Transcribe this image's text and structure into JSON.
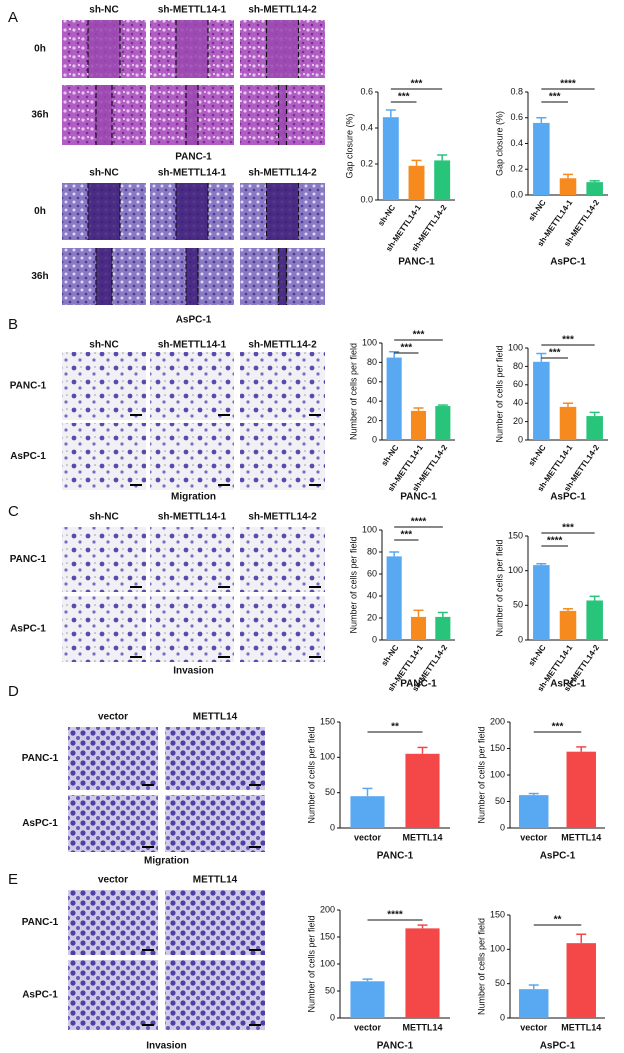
{
  "figure": {
    "panels": [
      "A",
      "B",
      "C",
      "D",
      "E"
    ],
    "image_grids": [
      {
        "columns": [
          "sh-NC",
          "sh-METTL14-1",
          "sh-METTL14-2"
        ],
        "rows": [
          "0h",
          "36h"
        ],
        "caption": "PANC-1"
      },
      {
        "columns": [
          "sh-NC",
          "sh-METTL14-1",
          "sh-METTL14-2"
        ],
        "rows": [
          "0h",
          "36h"
        ],
        "caption": "AsPC-1"
      },
      {
        "columns": [
          "sh-NC",
          "sh-METTL14-1",
          "sh-METTL14-2"
        ],
        "rows": [
          "PANC-1",
          "AsPC-1"
        ],
        "caption": "Migration"
      },
      {
        "columns": [
          "sh-NC",
          "sh-METTL14-1",
          "sh-METTL14-2"
        ],
        "rows": [
          "PANC-1",
          "AsPC-1"
        ],
        "caption": "Invasion"
      },
      {
        "columns": [
          "vector",
          "METTL14"
        ],
        "rows": [
          "PANC-1",
          "AsPC-1"
        ],
        "caption": "Migration"
      },
      {
        "columns": [
          "vector",
          "METTL14"
        ],
        "rows": [
          "PANC-1",
          "AsPC-1"
        ],
        "caption": "Invasion"
      }
    ]
  },
  "chart_data": [
    {
      "type": "bar",
      "title": "PANC-1",
      "y_label": "Gap closure (%)",
      "categories": [
        "sh-NC",
        "sh-METTL14-1",
        "sh-METTL14-2"
      ],
      "values": [
        0.46,
        0.19,
        0.22
      ],
      "errors": [
        0.04,
        0.03,
        0.03
      ],
      "colors": [
        "#58a8f2",
        "#f68a1e",
        "#27c47a"
      ],
      "ylim": [
        0,
        0.6
      ],
      "yticks": [
        {
          "value": 0,
          "label": "0.0"
        },
        0.2,
        0.4,
        0.6
      ],
      "annotations": [
        {
          "text": "***",
          "between": [
            0,
            1
          ]
        },
        {
          "text": "***",
          "between": [
            0,
            2
          ]
        }
      ]
    },
    {
      "type": "bar",
      "title": "AsPC-1",
      "y_label": "Gap closure (%)",
      "categories": [
        "sh-NC",
        "sh-METTL14-1",
        "sh-METTL14-2"
      ],
      "values": [
        0.56,
        0.13,
        0.1
      ],
      "errors": [
        0.04,
        0.03,
        0.01
      ],
      "colors": [
        "#58a8f2",
        "#f68a1e",
        "#27c47a"
      ],
      "ylim": [
        0,
        0.8
      ],
      "yticks": [
        {
          "value": 0,
          "label": "0.0"
        },
        0.2,
        0.4,
        0.6,
        0.8
      ],
      "annotations": [
        {
          "text": "***",
          "between": [
            0,
            1
          ]
        },
        {
          "text": "****",
          "between": [
            0,
            2
          ]
        }
      ]
    },
    {
      "type": "bar",
      "title": "PANC-1",
      "y_label": "Number of cells per field",
      "categories": [
        "sh-NC",
        "sh-METTL14-1",
        "sh-METTL14-2"
      ],
      "values": [
        85,
        30,
        35
      ],
      "errors": [
        6,
        3,
        1
      ],
      "colors": [
        "#58a8f2",
        "#f68a1e",
        "#27c47a"
      ],
      "ylim": [
        0,
        100
      ],
      "yticks": [
        0,
        20,
        40,
        60,
        80,
        100
      ],
      "annotations": [
        {
          "text": "***",
          "between": [
            0,
            1
          ]
        },
        {
          "text": "***",
          "between": [
            0,
            2
          ]
        }
      ]
    },
    {
      "type": "bar",
      "title": "AsPC-1",
      "y_label": "Number of cells per field",
      "categories": [
        "sh-NC",
        "sh-METTL14-1",
        "sh-METTL14-2"
      ],
      "values": [
        85,
        36,
        26
      ],
      "errors": [
        9,
        4,
        4
      ],
      "colors": [
        "#58a8f2",
        "#f68a1e",
        "#27c47a"
      ],
      "ylim": [
        0,
        100
      ],
      "yticks": [
        0,
        20,
        40,
        60,
        80,
        100
      ],
      "annotations": [
        {
          "text": "***",
          "between": [
            0,
            1
          ]
        },
        {
          "text": "***",
          "between": [
            0,
            2
          ]
        }
      ]
    },
    {
      "type": "bar",
      "title": "PANC-1",
      "y_label": "Number of cells per field",
      "categories": [
        "sh-NC",
        "sh-METTL14-1",
        "sh-METTL14-2"
      ],
      "values": [
        76,
        21,
        21
      ],
      "errors": [
        4,
        6,
        4
      ],
      "colors": [
        "#58a8f2",
        "#f68a1e",
        "#27c47a"
      ],
      "ylim": [
        0,
        100
      ],
      "yticks": [
        0,
        20,
        40,
        60,
        80,
        100
      ],
      "annotations": [
        {
          "text": "***",
          "between": [
            0,
            1
          ]
        },
        {
          "text": "****",
          "between": [
            0,
            2
          ]
        }
      ]
    },
    {
      "type": "bar",
      "title": "AsPC-1",
      "y_label": "Number of cells per field",
      "categories": [
        "sh-NC",
        "sh-METTL14-1",
        "sh-METTL14-2"
      ],
      "values": [
        108,
        42,
        57
      ],
      "errors": [
        2,
        3,
        6
      ],
      "colors": [
        "#58a8f2",
        "#f68a1e",
        "#27c47a"
      ],
      "ylim": [
        0,
        150
      ],
      "yticks": [
        0,
        50,
        100,
        150
      ],
      "annotations": [
        {
          "text": "****",
          "between": [
            0,
            1
          ]
        },
        {
          "text": "***",
          "between": [
            0,
            2
          ]
        }
      ]
    },
    {
      "type": "bar",
      "title": "PANC-1",
      "y_label": "Number of cells per field",
      "categories": [
        "vector",
        "METTL14"
      ],
      "values": [
        45,
        105
      ],
      "errors": [
        11,
        9
      ],
      "colors": [
        "#58a8f2",
        "#f44848"
      ],
      "ylim": [
        0,
        150
      ],
      "yticks": [
        0,
        50,
        100,
        150
      ],
      "annotations": [
        {
          "text": "**",
          "between": [
            0,
            1
          ]
        }
      ]
    },
    {
      "type": "bar",
      "title": "AsPC-1",
      "y_label": "Number of cells per field",
      "categories": [
        "vector",
        "METTL14"
      ],
      "values": [
        62,
        144
      ],
      "errors": [
        3,
        9
      ],
      "colors": [
        "#58a8f2",
        "#f44848"
      ],
      "ylim": [
        0,
        200
      ],
      "yticks": [
        0,
        50,
        100,
        150,
        200
      ],
      "annotations": [
        {
          "text": "***",
          "between": [
            0,
            1
          ]
        }
      ]
    },
    {
      "type": "bar",
      "title": "PANC-1",
      "y_label": "Number of cells per field",
      "categories": [
        "vector",
        "METTL14"
      ],
      "values": [
        68,
        166
      ],
      "errors": [
        4,
        6
      ],
      "colors": [
        "#58a8f2",
        "#f44848"
      ],
      "ylim": [
        0,
        200
      ],
      "yticks": [
        0,
        50,
        100,
        150,
        200
      ],
      "annotations": [
        {
          "text": "****",
          "between": [
            0,
            1
          ]
        }
      ]
    },
    {
      "type": "bar",
      "title": "AsPC-1",
      "y_label": "Number of cells per field",
      "categories": [
        "vector",
        "METTL14"
      ],
      "values": [
        42,
        109
      ],
      "errors": [
        6,
        13
      ],
      "colors": [
        "#58a8f2",
        "#f44848"
      ],
      "ylim": [
        0,
        150
      ],
      "yticks": [
        0,
        50,
        100,
        150
      ],
      "annotations": [
        {
          "text": "**",
          "between": [
            0,
            1
          ]
        }
      ]
    }
  ]
}
